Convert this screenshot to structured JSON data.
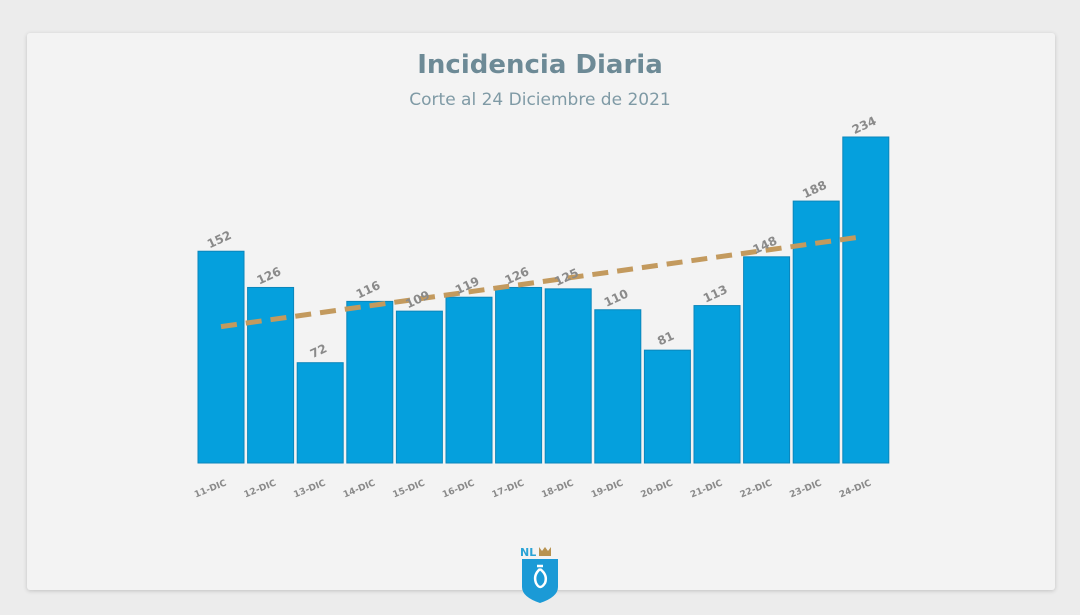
{
  "chart_data": {
    "type": "bar",
    "title": "Incidencia Diaria",
    "subtitle": "Corte al 24 Diciembre de 2021",
    "xlabel": "",
    "ylabel": "",
    "categories": [
      "11-DIC",
      "12-DIC",
      "13-DIC",
      "14-DIC",
      "15-DIC",
      "16-DIC",
      "17-DIC",
      "18-DIC",
      "19-DIC",
      "20-DIC",
      "21-DIC",
      "22-DIC",
      "23-DIC",
      "24-DIC"
    ],
    "values": [
      152,
      126,
      72,
      116,
      109,
      119,
      126,
      125,
      110,
      81,
      113,
      148,
      188,
      234
    ],
    "ylim": [
      0,
      234
    ],
    "grid": false,
    "data_labels": true,
    "trendline": {
      "type": "linear",
      "style": "dashed"
    },
    "colors": {
      "bar": "#05a0dd",
      "trendline": "#c39a5e",
      "labels": "#8a8a8a"
    }
  },
  "logo": {
    "text": "NL"
  }
}
